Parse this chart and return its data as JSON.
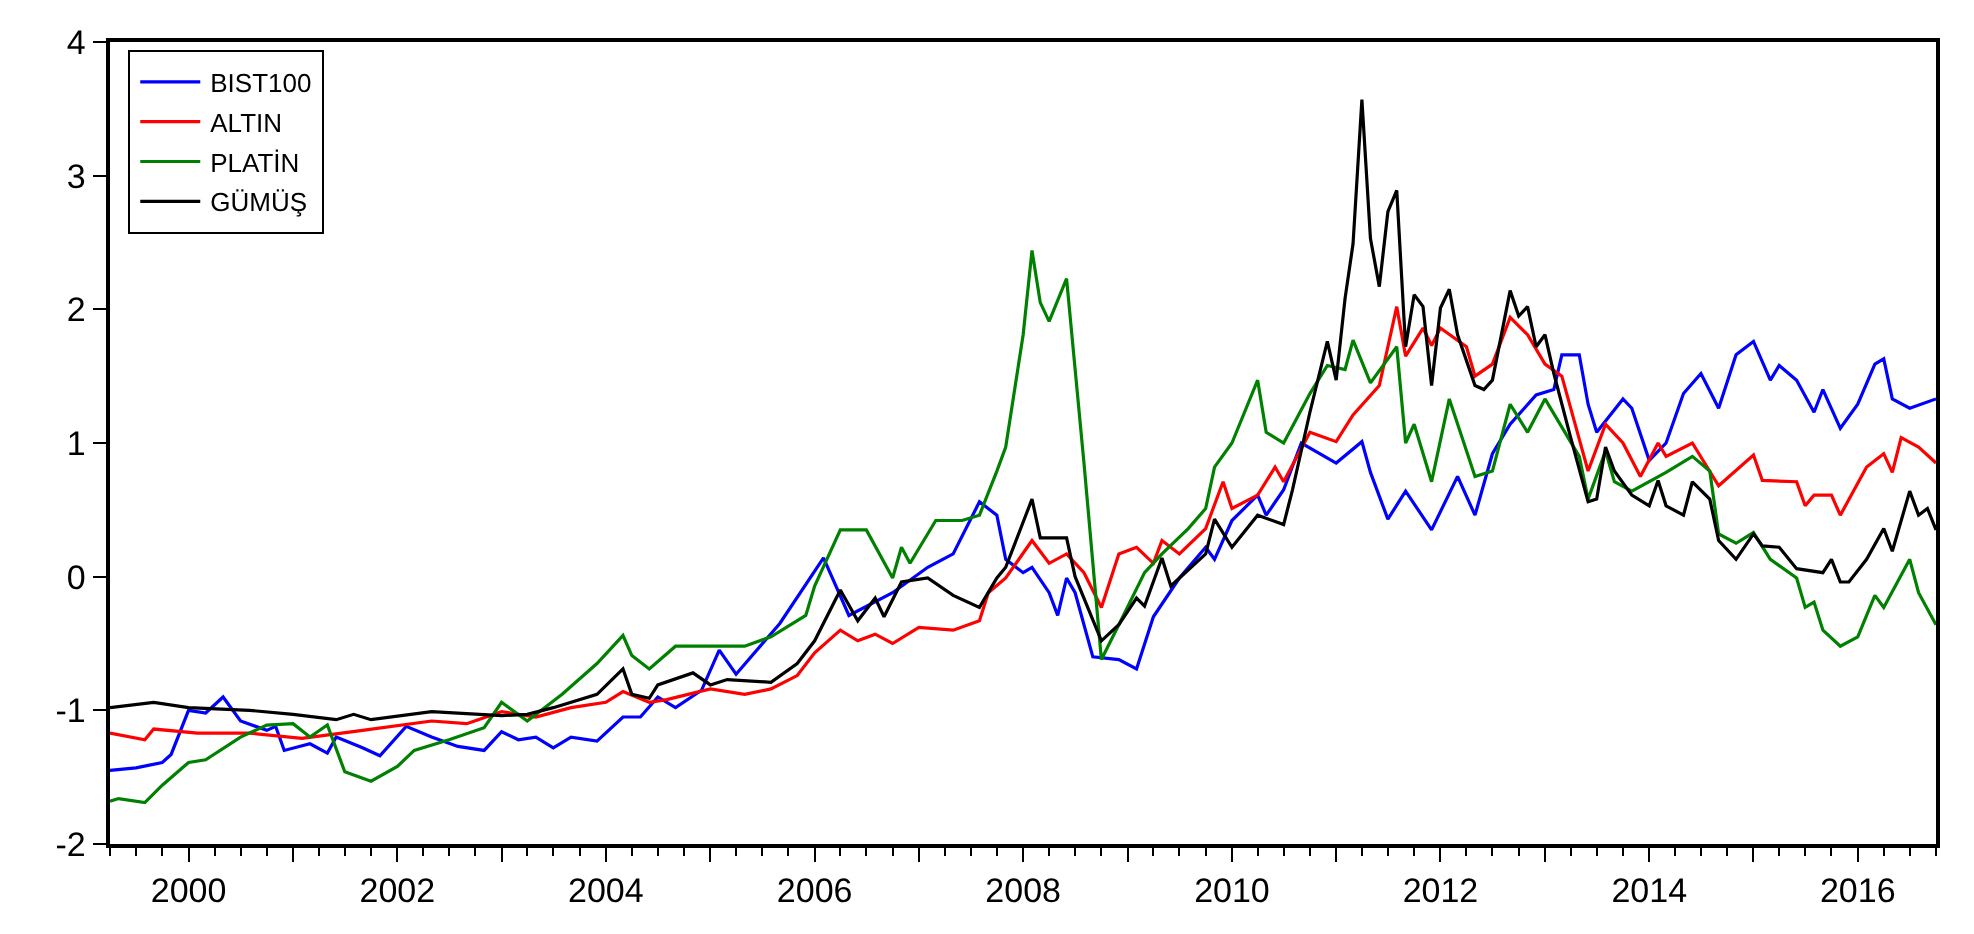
{
  "chart_data": {
    "type": "line",
    "xlim": [
      "1999-04",
      "2016-10"
    ],
    "xticks": [
      {
        "value": "2000-01",
        "label": "2000"
      },
      {
        "value": "2001-01",
        "label": null
      },
      {
        "value": "2002-01",
        "label": "2002"
      },
      {
        "value": "2003-01",
        "label": null
      },
      {
        "value": "2004-01",
        "label": "2004"
      },
      {
        "value": "2005-01",
        "label": null
      },
      {
        "value": "2006-01",
        "label": "2006"
      },
      {
        "value": "2007-01",
        "label": null
      },
      {
        "value": "2008-01",
        "label": "2008"
      },
      {
        "value": "2009-01",
        "label": null
      },
      {
        "value": "2010-01",
        "label": "2010"
      },
      {
        "value": "2011-01",
        "label": null
      },
      {
        "value": "2012-01",
        "label": "2012"
      },
      {
        "value": "2013-01",
        "label": null
      },
      {
        "value": "2014-01",
        "label": "2014"
      },
      {
        "value": "2015-01",
        "label": null
      },
      {
        "value": "2016-01",
        "label": "2016"
      }
    ],
    "ylim": [
      -2,
      4
    ],
    "yticks": [
      -2,
      -1,
      0,
      1,
      2,
      3,
      4
    ],
    "legend": "top left",
    "marker": "none",
    "line_style": "solid",
    "series": [
      {
        "name": "BIST100",
        "color": "#0000ff",
        "x": [
          "1999-04",
          "1999-07",
          "1999-10",
          "1999-11",
          "2000-01",
          "2000-03",
          "2000-05",
          "2000-07",
          "2000-10",
          "2000-11",
          "2000-12",
          "2001-03",
          "2001-05",
          "2001-06",
          "2001-09",
          "2001-11",
          "2002-02",
          "2002-05",
          "2002-08",
          "2002-11",
          "2003-01",
          "2003-03",
          "2003-05",
          "2003-07",
          "2003-09",
          "2003-12",
          "2004-03",
          "2004-05",
          "2004-07",
          "2004-09",
          "2004-12",
          "2005-02",
          "2005-04",
          "2005-09",
          "2006-02",
          "2006-05",
          "2006-10",
          "2007-02",
          "2007-05",
          "2007-08",
          "2007-10",
          "2007-11",
          "2008-01",
          "2008-02",
          "2008-04",
          "2008-05",
          "2008-06",
          "2008-07",
          "2008-09",
          "2008-12",
          "2009-02",
          "2009-04",
          "2009-07",
          "2009-10",
          "2009-11",
          "2010-01",
          "2010-04",
          "2010-05",
          "2010-07",
          "2010-09",
          "2011-01",
          "2011-04",
          "2011-05",
          "2011-07",
          "2011-09",
          "2011-12",
          "2012-03",
          "2012-05",
          "2012-07",
          "2012-09",
          "2012-12",
          "2013-02",
          "2013-03",
          "2013-05",
          "2013-06",
          "2013-07",
          "2013-10",
          "2013-11",
          "2014-01",
          "2014-03",
          "2014-05",
          "2014-07",
          "2014-09",
          "2014-11",
          "2015-01",
          "2015-03",
          "2015-04",
          "2015-06",
          "2015-08",
          "2015-09",
          "2015-11",
          "2016-01",
          "2016-03",
          "2016-04",
          "2016-05",
          "2016-07",
          "2016-10"
        ],
        "values": [
          -1.45,
          -1.43,
          -1.39,
          -1.33,
          -1.0,
          -1.02,
          -0.9,
          -1.08,
          -1.15,
          -1.12,
          -1.3,
          -1.25,
          -1.32,
          -1.2,
          -1.28,
          -1.34,
          -1.12,
          -1.2,
          -1.27,
          -1.3,
          -1.16,
          -1.22,
          -1.2,
          -1.28,
          -1.2,
          -1.23,
          -1.05,
          -1.05,
          -0.9,
          -0.98,
          -0.85,
          -0.55,
          -0.73,
          -0.35,
          0.14,
          -0.29,
          -0.12,
          0.07,
          0.17,
          0.56,
          0.46,
          0.13,
          0.03,
          0.07,
          -0.12,
          -0.29,
          -0.01,
          -0.12,
          -0.6,
          -0.62,
          -0.69,
          -0.3,
          -0.01,
          0.22,
          0.13,
          0.42,
          0.61,
          0.46,
          0.65,
          1.0,
          0.85,
          1.01,
          0.78,
          0.43,
          0.64,
          0.35,
          0.75,
          0.46,
          0.92,
          1.14,
          1.36,
          1.4,
          1.66,
          1.66,
          1.29,
          1.08,
          1.33,
          1.26,
          0.87,
          1.0,
          1.37,
          1.52,
          1.26,
          1.66,
          1.76,
          1.47,
          1.58,
          1.47,
          1.23,
          1.4,
          1.11,
          1.29,
          1.59,
          1.63,
          1.33,
          1.26,
          1.33
        ]
      },
      {
        "name": "ALTIN",
        "color": "#ff0000",
        "x": [
          "1999-04",
          "1999-08",
          "1999-09",
          "2000-02",
          "2000-08",
          "2001-02",
          "2001-09",
          "2002-05",
          "2002-09",
          "2003-01",
          "2003-05",
          "2003-09",
          "2004-01",
          "2004-03",
          "2004-06",
          "2004-08",
          "2005-01",
          "2005-05",
          "2005-08",
          "2005-11",
          "2006-01",
          "2006-04",
          "2006-06",
          "2006-08",
          "2006-10",
          "2007-01",
          "2007-05",
          "2007-08",
          "2007-09",
          "2007-11",
          "2008-02",
          "2008-04",
          "2008-06",
          "2008-08",
          "2008-10",
          "2008-12",
          "2009-02",
          "2009-04",
          "2009-05",
          "2009-07",
          "2009-10",
          "2009-12",
          "2010-01",
          "2010-04",
          "2010-06",
          "2010-07",
          "2010-10",
          "2011-01",
          "2011-03",
          "2011-06",
          "2011-08",
          "2011-09",
          "2011-11",
          "2011-12",
          "2012-01",
          "2012-04",
          "2012-05",
          "2012-07",
          "2012-09",
          "2012-11",
          "2013-01",
          "2013-03",
          "2013-06",
          "2013-08",
          "2013-10",
          "2013-12",
          "2014-02",
          "2014-03",
          "2014-06",
          "2014-09",
          "2015-01",
          "2015-02",
          "2015-06",
          "2015-07",
          "2015-08",
          "2015-10",
          "2015-11",
          "2016-02",
          "2016-04",
          "2016-05",
          "2016-06",
          "2016-08",
          "2016-10"
        ],
        "values": [
          -1.17,
          -1.22,
          -1.14,
          -1.17,
          -1.17,
          -1.21,
          -1.15,
          -1.08,
          -1.1,
          -1.01,
          -1.05,
          -0.98,
          -0.94,
          -0.86,
          -0.94,
          -0.92,
          -0.84,
          -0.88,
          -0.84,
          -0.74,
          -0.57,
          -0.4,
          -0.48,
          -0.43,
          -0.5,
          -0.38,
          -0.4,
          -0.33,
          -0.12,
          -0.01,
          0.27,
          0.1,
          0.17,
          0.03,
          -0.23,
          0.17,
          0.22,
          0.1,
          0.27,
          0.17,
          0.36,
          0.71,
          0.51,
          0.61,
          0.82,
          0.71,
          1.08,
          1.01,
          1.21,
          1.43,
          2.02,
          1.65,
          1.86,
          1.73,
          1.86,
          1.72,
          1.5,
          1.59,
          1.94,
          1.81,
          1.59,
          1.5,
          0.79,
          1.14,
          1.0,
          0.75,
          1.0,
          0.9,
          1.0,
          0.68,
          0.91,
          0.72,
          0.71,
          0.53,
          0.61,
          0.61,
          0.46,
          0.82,
          0.92,
          0.78,
          1.04,
          0.97,
          0.85
        ]
      },
      {
        "name": "PLATİN",
        "color": "#008000",
        "x": [
          "1999-04",
          "1999-05",
          "1999-08",
          "1999-10",
          "2000-01",
          "2000-03",
          "2000-07",
          "2000-10",
          "2001-01",
          "2001-03",
          "2001-05",
          "2001-07",
          "2001-10",
          "2002-01",
          "2002-03",
          "2002-07",
          "2002-11",
          "2003-01",
          "2003-04",
          "2003-08",
          "2003-12",
          "2004-03",
          "2004-04",
          "2004-06",
          "2004-09",
          "2005-05",
          "2005-08",
          "2005-12",
          "2006-01",
          "2006-04",
          "2006-07",
          "2006-10",
          "2006-11",
          "2006-12",
          "2007-03",
          "2007-06",
          "2007-08",
          "2007-10",
          "2007-11",
          "2008-01",
          "2008-02",
          "2008-03",
          "2008-04",
          "2008-06",
          "2008-08",
          "2008-10",
          "2008-12",
          "2009-03",
          "2009-05",
          "2009-08",
          "2009-10",
          "2009-11",
          "2010-01",
          "2010-04",
          "2010-05",
          "2010-07",
          "2010-10",
          "2010-12",
          "2011-02",
          "2011-03",
          "2011-05",
          "2011-08",
          "2011-09",
          "2011-10",
          "2011-12",
          "2012-02",
          "2012-05",
          "2012-07",
          "2012-09",
          "2012-11",
          "2013-01",
          "2013-05",
          "2013-06",
          "2013-08",
          "2013-09",
          "2013-11",
          "2014-03",
          "2014-06",
          "2014-08",
          "2014-09",
          "2014-11",
          "2015-01",
          "2015-03",
          "2015-06",
          "2015-07",
          "2015-08",
          "2015-09",
          "2015-11",
          "2016-01",
          "2016-03",
          "2016-04",
          "2016-07",
          "2016-08",
          "2016-10"
        ],
        "values": [
          -1.68,
          -1.66,
          -1.69,
          -1.56,
          -1.39,
          -1.37,
          -1.2,
          -1.11,
          -1.1,
          -1.2,
          -1.11,
          -1.46,
          -1.53,
          -1.42,
          -1.3,
          -1.22,
          -1.13,
          -0.94,
          -1.08,
          -0.88,
          -0.65,
          -0.44,
          -0.59,
          -0.69,
          -0.52,
          -0.52,
          -0.45,
          -0.29,
          -0.07,
          0.35,
          0.35,
          -0.01,
          0.22,
          0.1,
          0.42,
          0.42,
          0.46,
          0.79,
          0.97,
          1.81,
          2.44,
          2.05,
          1.91,
          2.23,
          0.85,
          -0.62,
          -0.36,
          0.03,
          0.17,
          0.36,
          0.51,
          0.82,
          1.0,
          1.47,
          1.08,
          1.0,
          1.37,
          1.58,
          1.55,
          1.77,
          1.45,
          1.72,
          1.0,
          1.14,
          0.71,
          1.33,
          0.75,
          0.79,
          1.29,
          1.08,
          1.33,
          0.9,
          0.58,
          0.94,
          0.71,
          0.64,
          0.78,
          0.9,
          0.79,
          0.32,
          0.25,
          0.33,
          0.13,
          -0.01,
          -0.23,
          -0.19,
          -0.4,
          -0.52,
          -0.45,
          -0.14,
          -0.23,
          0.13,
          -0.12,
          -0.36
        ]
      },
      {
        "name": "GÜMÜŞ",
        "color": "#000000",
        "x": [
          "1999-04",
          "1999-09",
          "2000-01",
          "2000-08",
          "2001-01",
          "2001-06",
          "2001-08",
          "2001-10",
          "2002-05",
          "2003-01",
          "2003-04",
          "2003-07",
          "2003-12",
          "2004-03",
          "2004-04",
          "2004-06",
          "2004-07",
          "2004-11",
          "2005-01",
          "2005-03",
          "2005-08",
          "2005-11",
          "2006-01",
          "2006-04",
          "2006-06",
          "2006-08",
          "2006-09",
          "2006-11",
          "2007-02",
          "2007-05",
          "2007-08",
          "2007-10",
          "2007-11",
          "2008-02",
          "2008-03",
          "2008-06",
          "2008-07",
          "2008-10",
          "2008-12",
          "2009-02",
          "2009-03",
          "2009-05",
          "2009-06",
          "2009-10",
          "2009-11",
          "2010-01",
          "2010-04",
          "2010-07",
          "2010-08",
          "2010-10",
          "2010-12",
          "2011-01",
          "2011-02",
          "2011-03",
          "2011-04",
          "2011-05",
          "2011-06",
          "2011-07",
          "2011-08",
          "2011-09",
          "2011-10",
          "2011-11",
          "2011-12",
          "2012-01",
          "2012-02",
          "2012-03",
          "2012-05",
          "2012-06",
          "2012-07",
          "2012-09",
          "2012-10",
          "2012-11",
          "2012-12",
          "2013-01",
          "2013-02",
          "2013-04",
          "2013-06",
          "2013-07",
          "2013-08",
          "2013-09",
          "2013-11",
          "2014-01",
          "2014-02",
          "2014-03",
          "2014-05",
          "2014-06",
          "2014-08",
          "2014-09",
          "2014-11",
          "2015-01",
          "2015-02",
          "2015-04",
          "2015-06",
          "2015-09",
          "2015-10",
          "2015-11",
          "2015-12",
          "2016-02",
          "2016-04",
          "2016-05",
          "2016-07",
          "2016-08",
          "2016-09",
          "2016-10"
        ],
        "values": [
          -0.98,
          -0.94,
          -0.98,
          -1.0,
          -1.03,
          -1.07,
          -1.03,
          -1.07,
          -1.01,
          -1.04,
          -1.03,
          -0.98,
          -0.88,
          -0.69,
          -0.88,
          -0.91,
          -0.81,
          -0.72,
          -0.81,
          -0.77,
          -0.79,
          -0.65,
          -0.48,
          -0.1,
          -0.33,
          -0.16,
          -0.3,
          -0.04,
          -0.01,
          -0.14,
          -0.23,
          -0.01,
          0.07,
          0.58,
          0.29,
          0.29,
          0.0,
          -0.48,
          -0.36,
          -0.16,
          -0.22,
          0.14,
          -0.07,
          0.17,
          0.43,
          0.22,
          0.46,
          0.39,
          0.65,
          1.23,
          1.76,
          1.47,
          2.08,
          2.49,
          3.57,
          2.53,
          2.17,
          2.73,
          2.89,
          1.72,
          2.11,
          2.02,
          1.43,
          2.01,
          2.15,
          1.81,
          1.43,
          1.4,
          1.47,
          2.14,
          1.95,
          2.02,
          1.72,
          1.81,
          1.52,
          1.04,
          0.56,
          0.58,
          0.97,
          0.79,
          0.61,
          0.53,
          0.72,
          0.53,
          0.46,
          0.71,
          0.58,
          0.27,
          0.13,
          0.32,
          0.23,
          0.22,
          0.06,
          0.03,
          0.13,
          -0.04,
          -0.04,
          0.13,
          0.36,
          0.19,
          0.64,
          0.46,
          0.51,
          0.35
        ]
      }
    ]
  }
}
